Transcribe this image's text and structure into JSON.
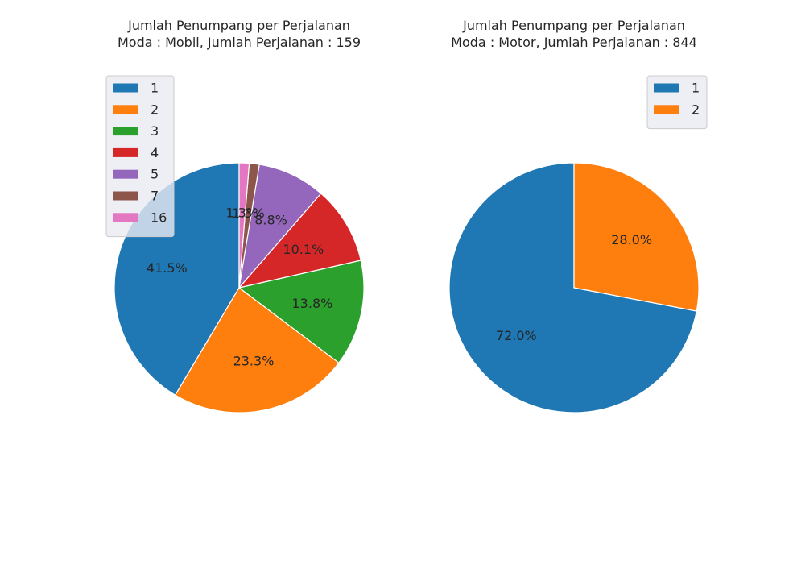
{
  "chart_data": [
    {
      "type": "pie",
      "title": "Jumlah Penumpang per Perjalanan\nModa : Mobil, Jumlah Perjalanan : 159",
      "categories": [
        "1",
        "2",
        "3",
        "4",
        "5",
        "7",
        "16"
      ],
      "values": [
        41.5,
        23.3,
        13.8,
        10.1,
        8.8,
        1.3,
        1.3
      ],
      "labels": [
        "41.5%",
        "23.3%",
        "13.8%",
        "10.1%",
        "8.8%",
        "1.3%",
        "1.3%"
      ],
      "colors": [
        "#1f77b4",
        "#ff7f0e",
        "#2ca02c",
        "#d62728",
        "#9467bd",
        "#8c564b",
        "#e377c2"
      ],
      "legend": "upper-left",
      "start_angle": 90,
      "direction": "counterclockwise"
    },
    {
      "type": "pie",
      "title": "Jumlah Penumpang per Perjalanan\nModa : Motor, Jumlah Perjalanan : 844",
      "categories": [
        "1",
        "2"
      ],
      "values": [
        72.0,
        28.0
      ],
      "labels": [
        "72.0%",
        "28.0%"
      ],
      "colors": [
        "#1f77b4",
        "#ff7f0e"
      ],
      "legend": "upper-right",
      "start_angle": 90,
      "direction": "counterclockwise"
    }
  ]
}
